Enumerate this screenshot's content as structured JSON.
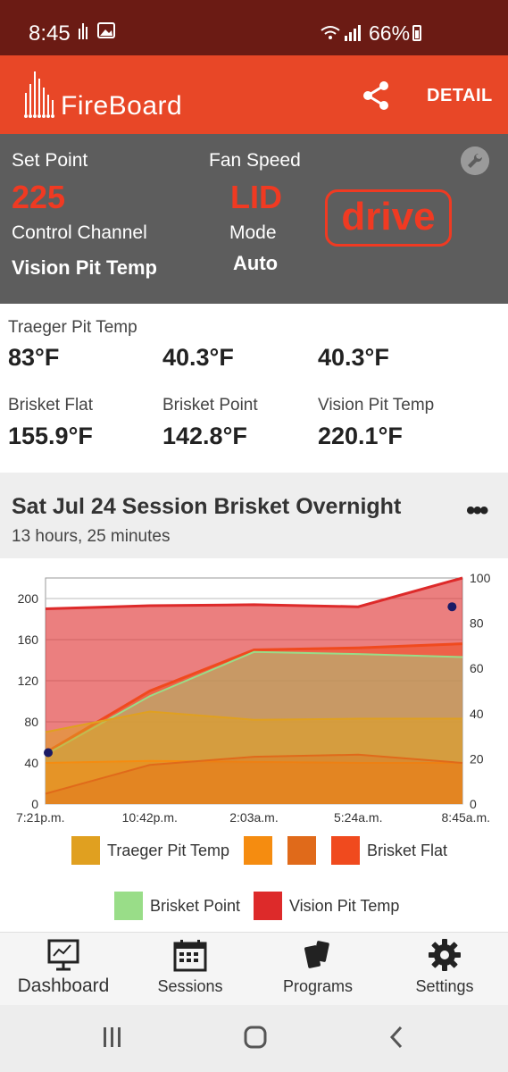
{
  "status_bar": {
    "time": "8:45",
    "battery": "66%"
  },
  "app_bar": {
    "logo": "FireBoard",
    "detail_label": "DETAIL"
  },
  "control": {
    "set_point_label": "Set Point",
    "set_point_value": "225",
    "fan_speed_label": "Fan Speed",
    "fan_speed_value": "LID",
    "control_channel_label": "Control Channel",
    "control_channel_value": "Vision Pit Temp",
    "mode_label": "Mode",
    "mode_value": "Auto",
    "drive_label": "drive"
  },
  "probes": [
    {
      "label": "Traeger Pit Temp",
      "value": "83°F"
    },
    {
      "label": "",
      "value": "40.3°F"
    },
    {
      "label": "",
      "value": "40.3°F"
    },
    {
      "label": "Brisket Flat",
      "value": "155.9°F"
    },
    {
      "label": "Brisket Point",
      "value": "142.8°F"
    },
    {
      "label": "Vision Pit Temp",
      "value": "220.1°F"
    }
  ],
  "session": {
    "title": "Sat Jul 24 Session Brisket Overnight",
    "duration": "13 hours, 25 minutes"
  },
  "chart_data": {
    "type": "area",
    "x_tick_labels": [
      "7:21p.m.",
      "10:42p.m.",
      "2:03a.m.",
      "5:24a.m.",
      "8:45a.m."
    ],
    "x": [
      0,
      0.25,
      0.5,
      0.75,
      1
    ],
    "ylim_left": [
      0,
      220
    ],
    "yticks_left": [
      0,
      40,
      80,
      120,
      160,
      200
    ],
    "ylim_right": [
      0,
      100
    ],
    "yticks_right": [
      0,
      20,
      40,
      60,
      80,
      100
    ],
    "grid": true,
    "legend_position": "bottom",
    "series": [
      {
        "name": "Traeger Pit Temp",
        "color": "#e0a020",
        "values": [
          70,
          90,
          82,
          83,
          83
        ]
      },
      {
        "name": "",
        "color": "#f58c10",
        "values": [
          40,
          42,
          41,
          40,
          40
        ]
      },
      {
        "name": "",
        "color": "#e06a1a",
        "values": [
          10,
          38,
          46,
          48,
          40
        ]
      },
      {
        "name": "Brisket Flat",
        "color": "#f04a1e",
        "values": [
          50,
          110,
          150,
          152,
          156
        ]
      },
      {
        "name": "Brisket Point",
        "color": "#99dd88",
        "values": [
          48,
          105,
          148,
          146,
          143
        ]
      },
      {
        "name": "Vision Pit Temp",
        "color": "#dd2a2a",
        "values": [
          190,
          193,
          194,
          192,
          220
        ]
      }
    ]
  },
  "nav": {
    "dashboard": "Dashboard",
    "sessions": "Sessions",
    "programs": "Programs",
    "settings": "Settings"
  },
  "colors": {
    "brand": "#e84727",
    "dark_header": "#6b1b14",
    "panel": "#5d5d5d",
    "accent_red": "#f03a22"
  }
}
